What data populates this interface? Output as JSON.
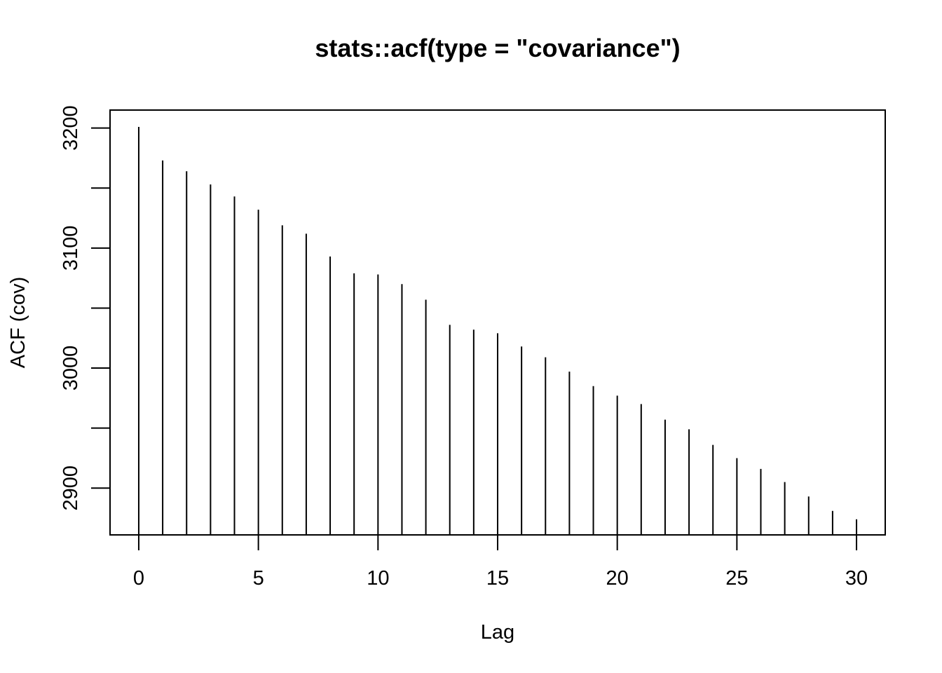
{
  "chart_data": {
    "type": "bar",
    "title": "stats::acf(type = \"covariance\")",
    "xlabel": "Lag",
    "ylabel": "ACF (cov)",
    "x": [
      0,
      1,
      2,
      3,
      4,
      5,
      6,
      7,
      8,
      9,
      10,
      11,
      12,
      13,
      14,
      15,
      16,
      17,
      18,
      19,
      20,
      21,
      22,
      23,
      24,
      25,
      26,
      27,
      28,
      29,
      30
    ],
    "values": [
      3201,
      3173,
      3164,
      3153,
      3143,
      3132,
      3119,
      3112,
      3093,
      3079,
      3078,
      3070,
      3057,
      3036,
      3032,
      3029,
      3018,
      3009,
      2997,
      2985,
      2977,
      2970,
      2957,
      2949,
      2936,
      2925,
      2916,
      2905,
      2893,
      2881,
      2874
    ],
    "xlim": [
      -1.2,
      31.2
    ],
    "ylim": [
      2861,
      3215
    ],
    "xticks": [
      0,
      5,
      10,
      15,
      20,
      25,
      30
    ],
    "xtick_labels": [
      "0",
      "5",
      "10",
      "15",
      "20",
      "25",
      "30"
    ],
    "yticks": [
      2900,
      2950,
      3000,
      3050,
      3100,
      3150,
      3200
    ],
    "ytick_labels": [
      "2900",
      "",
      "3000",
      "",
      "3100",
      "",
      "3200"
    ],
    "grid": false,
    "legend": "none",
    "color": "#000000"
  }
}
